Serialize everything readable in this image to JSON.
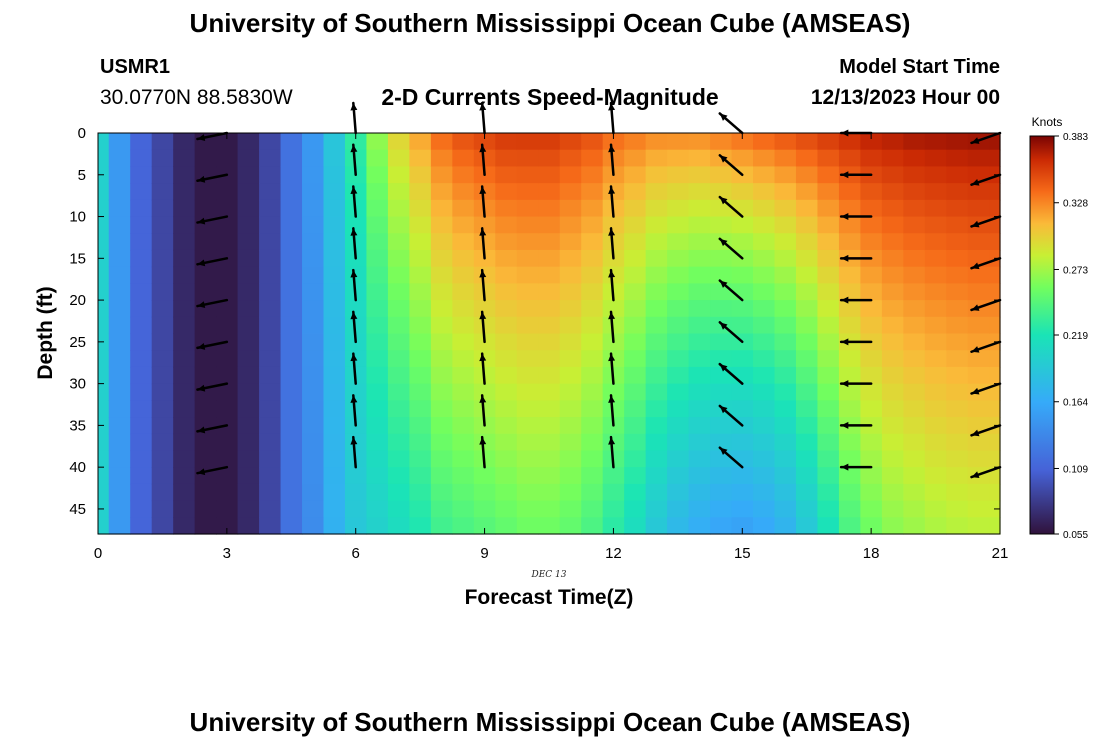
{
  "header": {
    "title": "University of Southern Mississippi Ocean Cube (AMSEAS)",
    "station_id": "USMR1",
    "coordinates": "30.0770N  88.5830W",
    "subtitle": "2-D Currents Speed-Magnitude",
    "model_start_label": "Model Start Time",
    "model_start_value": "12/13/2023 Hour 00"
  },
  "footer": {
    "title": "University of Southern Mississippi Ocean Cube (AMSEAS)"
  },
  "chart_data": {
    "type": "heatmap",
    "title": "2-D Currents Speed-Magnitude",
    "xlabel": "Forecast Time(Z)",
    "ylabel": "Depth (ft)",
    "date_label": "DEC 13",
    "xlim": [
      0,
      21
    ],
    "ylim": [
      48,
      0
    ],
    "x_ticks": [
      0,
      3,
      6,
      9,
      12,
      15,
      18,
      21
    ],
    "y_ticks": [
      0,
      5,
      10,
      15,
      20,
      25,
      30,
      35,
      40,
      45
    ],
    "colorbar": {
      "unit": "Knots",
      "min": 0.055,
      "max": 0.383,
      "ticks": [
        "0.383",
        "0.328",
        "0.273",
        "0.219",
        "0.164",
        "0.109",
        "0.055"
      ]
    },
    "hours": [
      0,
      0.5,
      1,
      1.5,
      2,
      2.5,
      3,
      3.5,
      4,
      4.5,
      5,
      5.5,
      6,
      6.5,
      7,
      7.5,
      8,
      8.5,
      9,
      9.5,
      10,
      10.5,
      11,
      11.5,
      12,
      12.5,
      13,
      13.5,
      14,
      14.5,
      15,
      15.5,
      16,
      16.5,
      17,
      17.5,
      18,
      18.5,
      19,
      19.5,
      20,
      20.5,
      21
    ],
    "speed_surface": [
      0.2,
      0.15,
      0.11,
      0.09,
      0.07,
      0.06,
      0.06,
      0.07,
      0.09,
      0.12,
      0.15,
      0.19,
      0.23,
      0.27,
      0.3,
      0.32,
      0.34,
      0.35,
      0.355,
      0.36,
      0.36,
      0.36,
      0.355,
      0.35,
      0.34,
      0.335,
      0.33,
      0.33,
      0.33,
      0.335,
      0.34,
      0.345,
      0.35,
      0.355,
      0.36,
      0.365,
      0.37,
      0.372,
      0.375,
      0.376,
      0.377,
      0.378,
      0.378
    ],
    "speed_bottom": [
      0.2,
      0.15,
      0.11,
      0.09,
      0.07,
      0.06,
      0.06,
      0.07,
      0.09,
      0.12,
      0.14,
      0.17,
      0.19,
      0.2,
      0.21,
      0.22,
      0.235,
      0.24,
      0.245,
      0.25,
      0.255,
      0.255,
      0.25,
      0.24,
      0.225,
      0.21,
      0.19,
      0.175,
      0.165,
      0.158,
      0.155,
      0.16,
      0.17,
      0.19,
      0.215,
      0.24,
      0.255,
      0.265,
      0.27,
      0.275,
      0.278,
      0.28,
      0.28
    ],
    "vector_depths": [
      0,
      5,
      10,
      15,
      20,
      25,
      30,
      35,
      40
    ],
    "vectors": [
      {
        "hour": 3,
        "u": -0.98,
        "v": 0.2
      },
      {
        "hour": 6,
        "u": -0.08,
        "v": -1.0
      },
      {
        "hour": 9,
        "u": -0.08,
        "v": -1.0
      },
      {
        "hour": 12,
        "u": -0.08,
        "v": -1.0
      },
      {
        "hour": 15,
        "u": -0.75,
        "v": -0.65
      },
      {
        "hour": 18,
        "u": -1.0,
        "v": 0.0
      },
      {
        "hour": 21,
        "u": -0.95,
        "v": 0.33
      }
    ]
  }
}
